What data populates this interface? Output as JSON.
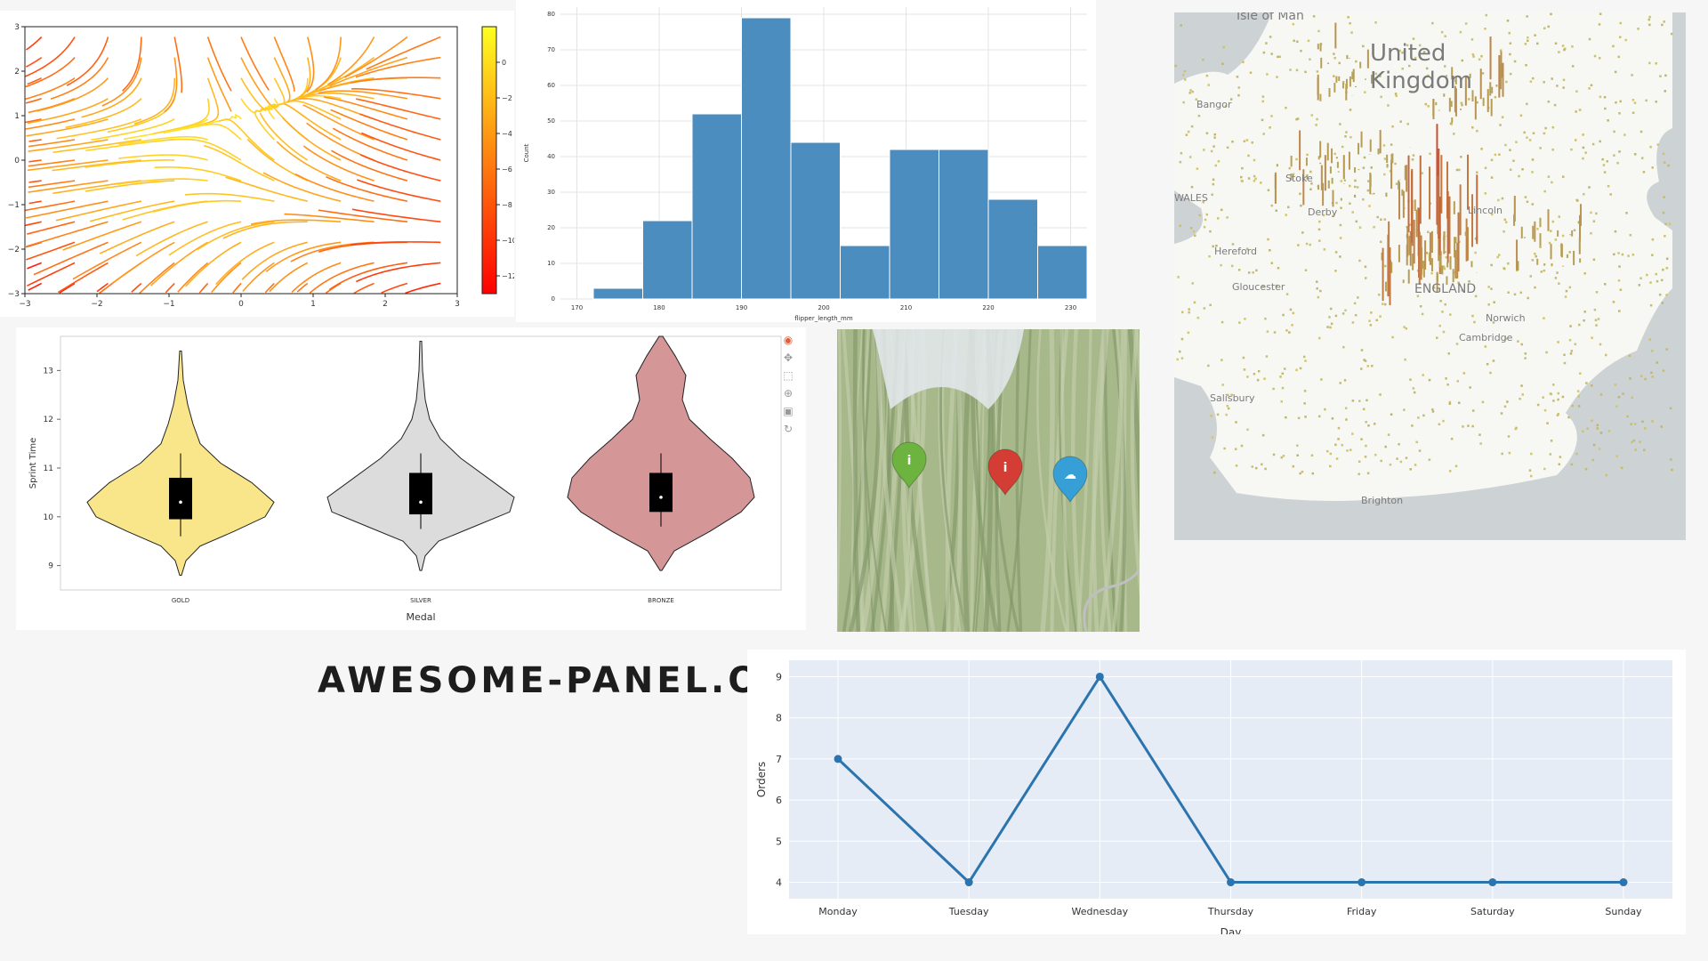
{
  "brand": {
    "text": "AWESOME-PANEL.ORG"
  },
  "colors": {
    "histogram": "#4c8dbf",
    "line": "#2c74ae",
    "gold": "#fae68a",
    "silver": "#dcdcdc",
    "bronze": "#d49696",
    "map_green": "#6cb33f",
    "map_red": "#d43d33",
    "map_blue": "#36a0d6"
  },
  "toolbar": {
    "icons": [
      "bokeh-logo-icon",
      "pan-icon",
      "box-zoom-icon",
      "wheel-zoom-icon",
      "save-icon",
      "reset-icon"
    ]
  },
  "map_markers": [
    {
      "color": "#6cb33f",
      "icon": "info-icon",
      "glyph": "i"
    },
    {
      "color": "#d43d33",
      "icon": "info-icon",
      "glyph": "i"
    },
    {
      "color": "#36a0d6",
      "icon": "cloud-icon",
      "glyph": "☁"
    }
  ],
  "uk_labels": [
    "Isle of Man",
    "United",
    "Kingdom",
    "Bangor",
    "WALES",
    "Hereford",
    "Gloucester",
    "Stoke",
    "Derby",
    "Lincoln",
    "ENGLAND",
    "Cambridge",
    "Norwich",
    "Salisbury",
    "Brighton"
  ],
  "chart_data": [
    {
      "type": "streamplot",
      "xlim": [
        -3,
        3
      ],
      "ylim": [
        -3,
        3
      ],
      "x_ticks": [
        "−3",
        "−2",
        "−1",
        "0",
        "1",
        "2",
        "3"
      ],
      "y_ticks": [
        "−3",
        "−2",
        "−1",
        "0",
        "1",
        "2",
        "3"
      ],
      "colorbar": {
        "range": [
          -13,
          2
        ],
        "ticks": [
          "0",
          "−2",
          "−4",
          "−6",
          "−8",
          "−10",
          "−12"
        ],
        "colormap": "autumn"
      }
    },
    {
      "type": "bar",
      "subtype": "histogram",
      "xlabel": "flipper_length_mm",
      "ylabel": "Count",
      "xlim": [
        168,
        232
      ],
      "ylim": [
        0,
        82
      ],
      "x_ticks": [
        170,
        180,
        190,
        200,
        210,
        220,
        230
      ],
      "y_ticks": [
        0,
        10,
        20,
        30,
        40,
        50,
        60,
        70,
        80
      ],
      "bins": [
        {
          "start": 172,
          "end": 178,
          "count": 3
        },
        {
          "start": 178,
          "end": 184,
          "count": 22
        },
        {
          "start": 184,
          "end": 190,
          "count": 52
        },
        {
          "start": 190,
          "end": 196,
          "count": 79
        },
        {
          "start": 196,
          "end": 202,
          "count": 44
        },
        {
          "start": 202,
          "end": 208,
          "count": 15
        },
        {
          "start": 208,
          "end": 214,
          "count": 42
        },
        {
          "start": 214,
          "end": 220,
          "count": 42
        },
        {
          "start": 220,
          "end": 226,
          "count": 28
        },
        {
          "start": 226,
          "end": 232,
          "count": 15
        }
      ]
    },
    {
      "type": "violin",
      "xlabel": "Medal",
      "ylabel": "Sprint Time",
      "ylim": [
        8.5,
        13.7
      ],
      "y_ticks": [
        9,
        10,
        11,
        12,
        13
      ],
      "categories": [
        "GOLD",
        "SILVER",
        "BRONZE"
      ],
      "series": [
        {
          "name": "GOLD",
          "median": 10.3,
          "q1": 9.95,
          "q3": 10.8,
          "min": 9.6,
          "max": 11.3
        },
        {
          "name": "SILVER",
          "median": 10.3,
          "q1": 10.05,
          "q3": 10.9,
          "min": 9.75,
          "max": 11.3
        },
        {
          "name": "BRONZE",
          "median": 10.4,
          "q1": 10.1,
          "q3": 10.9,
          "min": 9.8,
          "max": 11.3
        }
      ]
    },
    {
      "type": "line",
      "xlabel": "Day",
      "ylabel": "Orders",
      "ylim": [
        3.6,
        9.4
      ],
      "y_ticks": [
        4,
        5,
        6,
        7,
        8,
        9
      ],
      "categories": [
        "Monday",
        "Tuesday",
        "Wednesday",
        "Thursday",
        "Friday",
        "Saturday",
        "Sunday"
      ],
      "values": [
        7,
        4,
        9,
        4,
        4,
        4,
        4
      ]
    }
  ]
}
